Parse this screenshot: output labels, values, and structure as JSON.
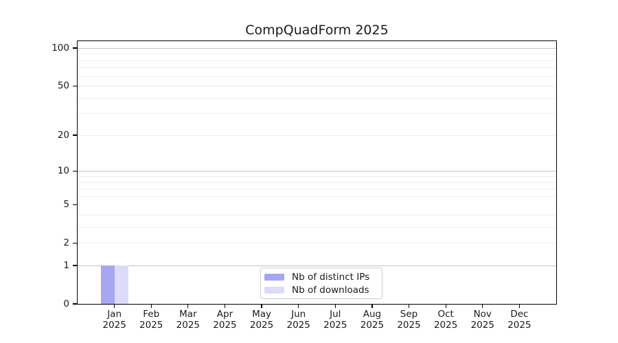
{
  "chart_data": {
    "type": "bar",
    "title": "CompQuadForm 2025",
    "categories": [
      "Jan 2025",
      "Feb 2025",
      "Mar 2025",
      "Apr 2025",
      "May 2025",
      "Jun 2025",
      "Jul 2025",
      "Aug 2025",
      "Sep 2025",
      "Oct 2025",
      "Nov 2025",
      "Dec 2025"
    ],
    "series": [
      {
        "name": "Nb of distinct IPs",
        "color": "#a6a6f2",
        "values": [
          1,
          0,
          0,
          0,
          0,
          0,
          0,
          0,
          0,
          0,
          0,
          0
        ]
      },
      {
        "name": "Nb of downloads",
        "color": "#dcdcf8",
        "values": [
          1,
          0,
          0,
          0,
          0,
          0,
          0,
          0,
          0,
          0,
          0,
          0
        ]
      }
    ],
    "y_axis": {
      "scale": "log1p",
      "tick_labels": [
        0,
        1,
        2,
        5,
        10,
        20,
        50,
        100
      ],
      "major_gridlines": [
        1,
        10,
        100
      ],
      "minor_gridlines": [
        2,
        3,
        4,
        6,
        7,
        8,
        9,
        20,
        30,
        40,
        50,
        60,
        70,
        80,
        90
      ],
      "ylim": [
        0,
        113
      ]
    },
    "legend": {
      "position": "lower center"
    },
    "grid": "horizontal"
  },
  "colors": {
    "background": "#ffffff",
    "axis": "#000000",
    "text": "#1a1a1a",
    "major_grid": "#c3c3c3",
    "minor_grid": "#ededed",
    "legend_border": "#cccccc"
  }
}
